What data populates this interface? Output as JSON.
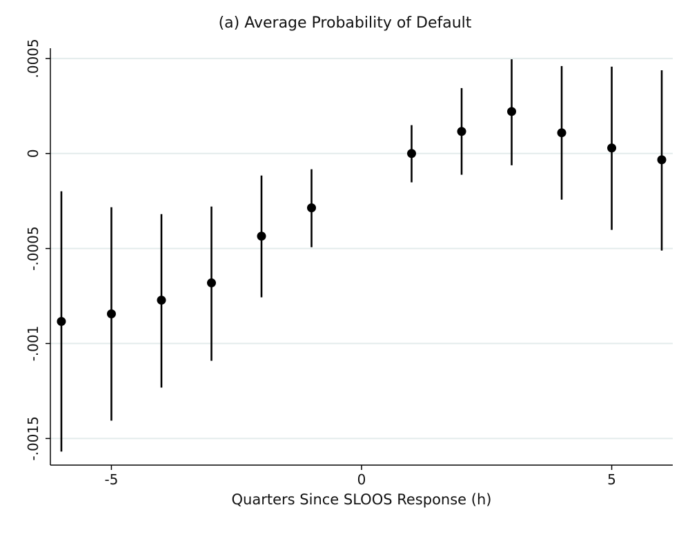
{
  "chart_data": {
    "type": "scatter",
    "title": "(a) Average Probability of Default",
    "xlabel": "Quarters Since SLOOS Response (h)",
    "ylabel": "",
    "xlim": [
      -6.22,
      6.22
    ],
    "ylim": [
      -0.00164,
      0.000554
    ],
    "xticks": [
      -5,
      0,
      5
    ],
    "xtick_labels": [
      "-5",
      "0",
      "5"
    ],
    "yticks": [
      0.0005,
      0,
      -0.0005,
      -0.001,
      -0.0015
    ],
    "ytick_labels": [
      ".0005",
      "0",
      "-.0005",
      "-.001",
      "-.0015"
    ],
    "grid": "horizontal",
    "error_bars": true,
    "marker_color": "#000000",
    "grid_color": "#e3ebeb",
    "points": [
      {
        "x": -6,
        "y": -0.000884,
        "lo": -0.001569,
        "hi": -0.000199
      },
      {
        "x": -5,
        "y": -0.000844,
        "lo": -0.001406,
        "hi": -0.000283
      },
      {
        "x": -4,
        "y": -0.000772,
        "lo": -0.001232,
        "hi": -0.000319
      },
      {
        "x": -3,
        "y": -0.000681,
        "lo": -0.001091,
        "hi": -0.000279
      },
      {
        "x": -2,
        "y": -0.000435,
        "lo": -0.000757,
        "hi": -0.000116
      },
      {
        "x": -1,
        "y": -0.000286,
        "lo": -0.000493,
        "hi": -8.3e-05
      },
      {
        "x": 1,
        "y": 0.0,
        "lo": -0.000152,
        "hi": 0.000149
      },
      {
        "x": 2,
        "y": 0.000116,
        "lo": -0.000112,
        "hi": 0.000344
      },
      {
        "x": 3,
        "y": 0.000221,
        "lo": -6.2e-05,
        "hi": 0.000496
      },
      {
        "x": 4,
        "y": 0.000109,
        "lo": -0.000243,
        "hi": 0.00046
      },
      {
        "x": 5,
        "y": 2.9e-05,
        "lo": -0.000402,
        "hi": 0.000457
      },
      {
        "x": 6,
        "y": -3.3e-05,
        "lo": -0.000511,
        "hi": 0.000438
      }
    ]
  }
}
